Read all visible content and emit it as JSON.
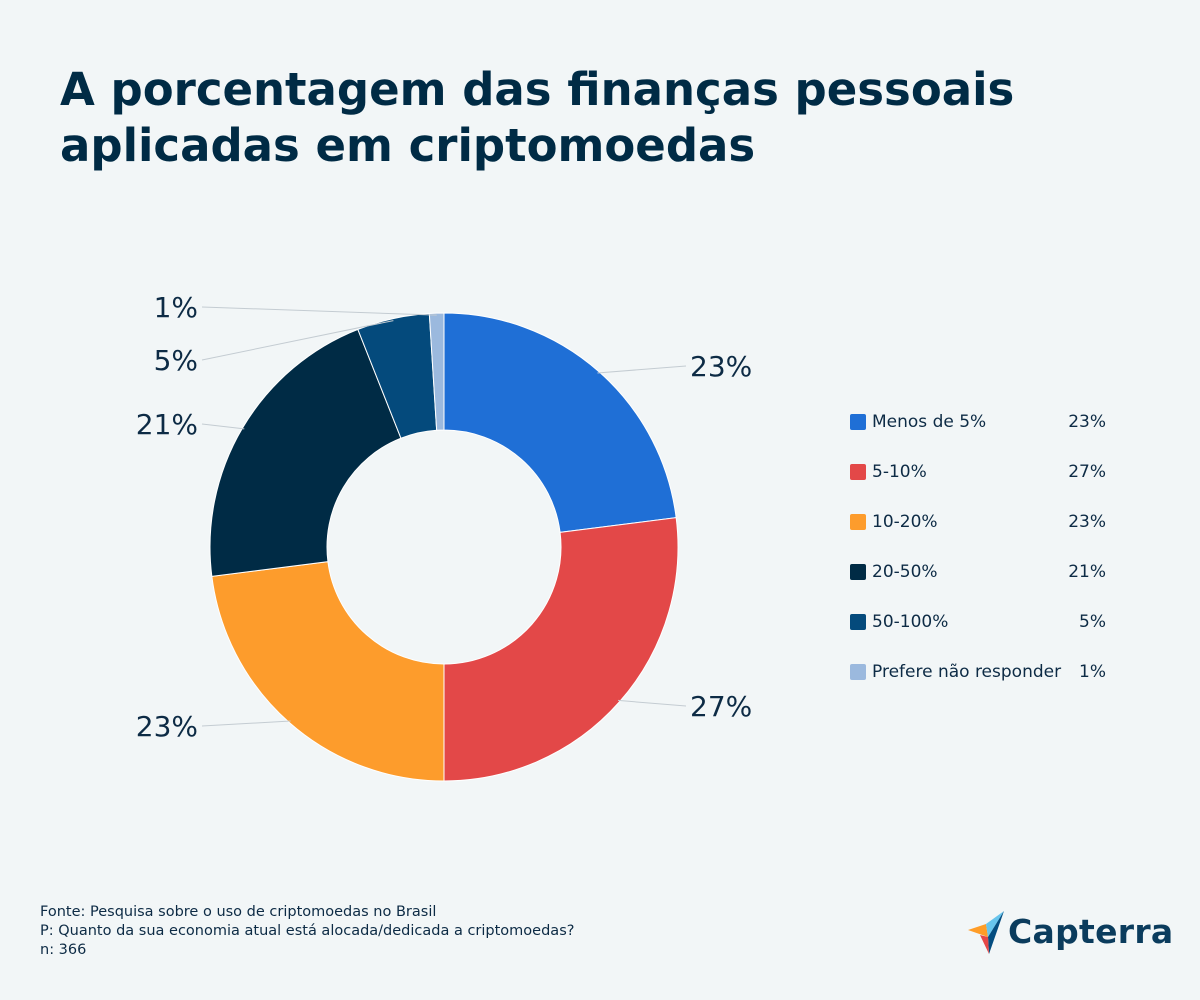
{
  "title_lines": [
    "A porcentagem das finanças pessoais",
    "aplicadas em criptomoedas"
  ],
  "chart_data": {
    "type": "pie",
    "style": "donut",
    "categories": [
      "Menos de 5%",
      "5-10%",
      "10-20%",
      "20-50%",
      "50-100%",
      "Prefere não responder"
    ],
    "values": [
      23,
      27,
      23,
      21,
      5,
      1
    ],
    "labels": [
      "23%",
      "27%",
      "23%",
      "21%",
      "5%",
      "1%"
    ],
    "colors": [
      "#1f6fd6",
      "#e34848",
      "#fd9c2c",
      "#002b45",
      "#044a7c",
      "#9bb9de"
    ],
    "legend_placement": "right"
  },
  "footer": {
    "source": "Fonte: Pesquisa sobre o uso de criptomoedas no Brasil",
    "question": "P: Quanto da sua economia atual está alocada/dedicada a criptomoedas?",
    "sample": "n: 366"
  },
  "logo": {
    "text": "Capterra",
    "colors": [
      "#ff9d28",
      "#68c5ed",
      "#044d80",
      "#e54747"
    ]
  }
}
